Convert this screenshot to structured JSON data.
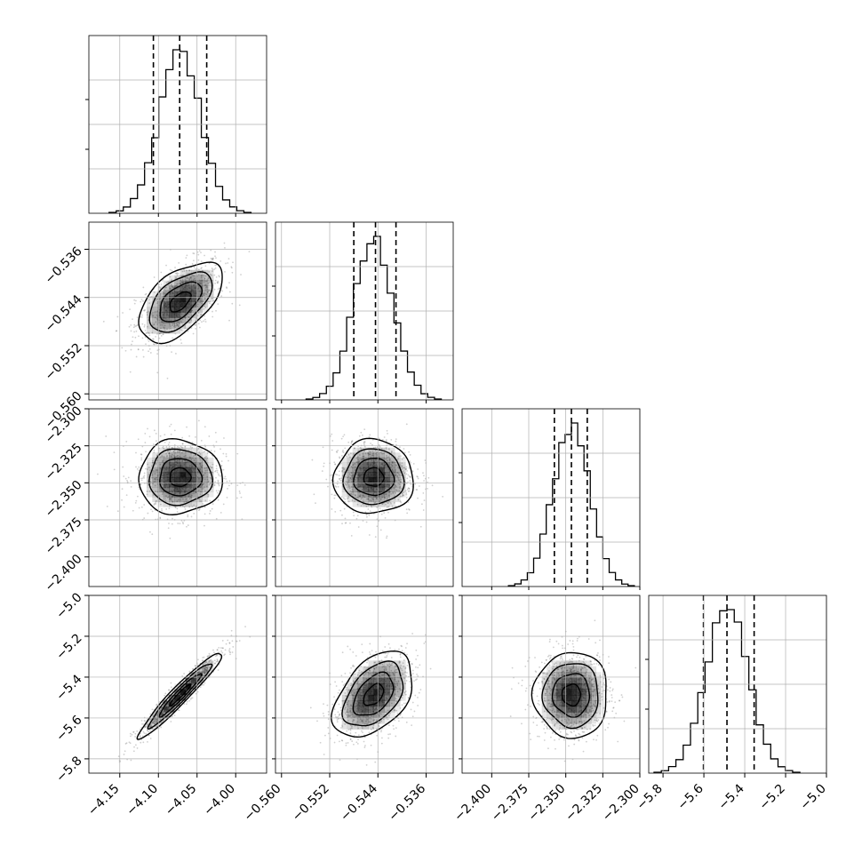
{
  "chart_data": {
    "type": "corner",
    "title": "",
    "grid": true,
    "params": [
      {
        "name": "",
        "xlim": [
          -4.19,
          -3.96
        ],
        "ticks": [
          -4.15,
          -4.1,
          -4.05,
          -4.0
        ],
        "tick_labels": [
          "−4.15",
          "−4.10",
          "−4.05",
          "−4.00"
        ],
        "mean": -4.072,
        "sd": 0.027,
        "quantiles": [
          -4.1065,
          -4.0725,
          -4.0375
        ]
      },
      {
        "name": "",
        "xlim": [
          -0.561,
          -0.5315
        ],
        "ticks": [
          -0.56,
          -0.552,
          -0.544,
          -0.536
        ],
        "tick_labels": [
          "−0.560",
          "−0.552",
          "−0.544",
          "−0.536"
        ],
        "mean": -0.5447,
        "sd": 0.0033,
        "quantiles": [
          -0.548,
          -0.5444,
          -0.541
        ]
      },
      {
        "name": "",
        "xlim": [
          -2.42,
          -2.3
        ],
        "ticks": [
          -2.4,
          -2.375,
          -2.35,
          -2.325,
          -2.3
        ],
        "tick_labels": [
          "−2.400",
          "−2.375",
          "−2.350",
          "−2.325",
          "−2.300"
        ],
        "mean": -2.3462,
        "sd": 0.0125,
        "quantiles": [
          -2.3577,
          -2.3462,
          -2.3355
        ]
      },
      {
        "name": "",
        "xlim": [
          -5.87,
          -5.0
        ],
        "ticks": [
          -5.8,
          -5.6,
          -5.4,
          -5.2,
          -5.0
        ],
        "tick_labels": [
          "−5.8",
          "−5.6",
          "−5.4",
          "−5.2",
          "−5.0"
        ],
        "mean": -5.487,
        "sd": 0.105,
        "quantiles": [
          -5.602,
          -5.487,
          -5.354
        ]
      }
    ],
    "correlations": [
      [
        1.0,
        0.55,
        0.0,
        0.96
      ],
      [
        0.55,
        1.0,
        0.0,
        0.45
      ],
      [
        0.0,
        0.0,
        1.0,
        0.0
      ],
      [
        0.96,
        0.45,
        0.0,
        1.0
      ]
    ],
    "hist_bins": 20,
    "contour_levels": [
      0.5,
      1.0,
      1.5,
      2.0
    ],
    "quantile_line_style": "dashed",
    "colors": {
      "line": "#000000",
      "grid": "#b0b0b0",
      "points": "#777777",
      "density": "#000000"
    }
  }
}
